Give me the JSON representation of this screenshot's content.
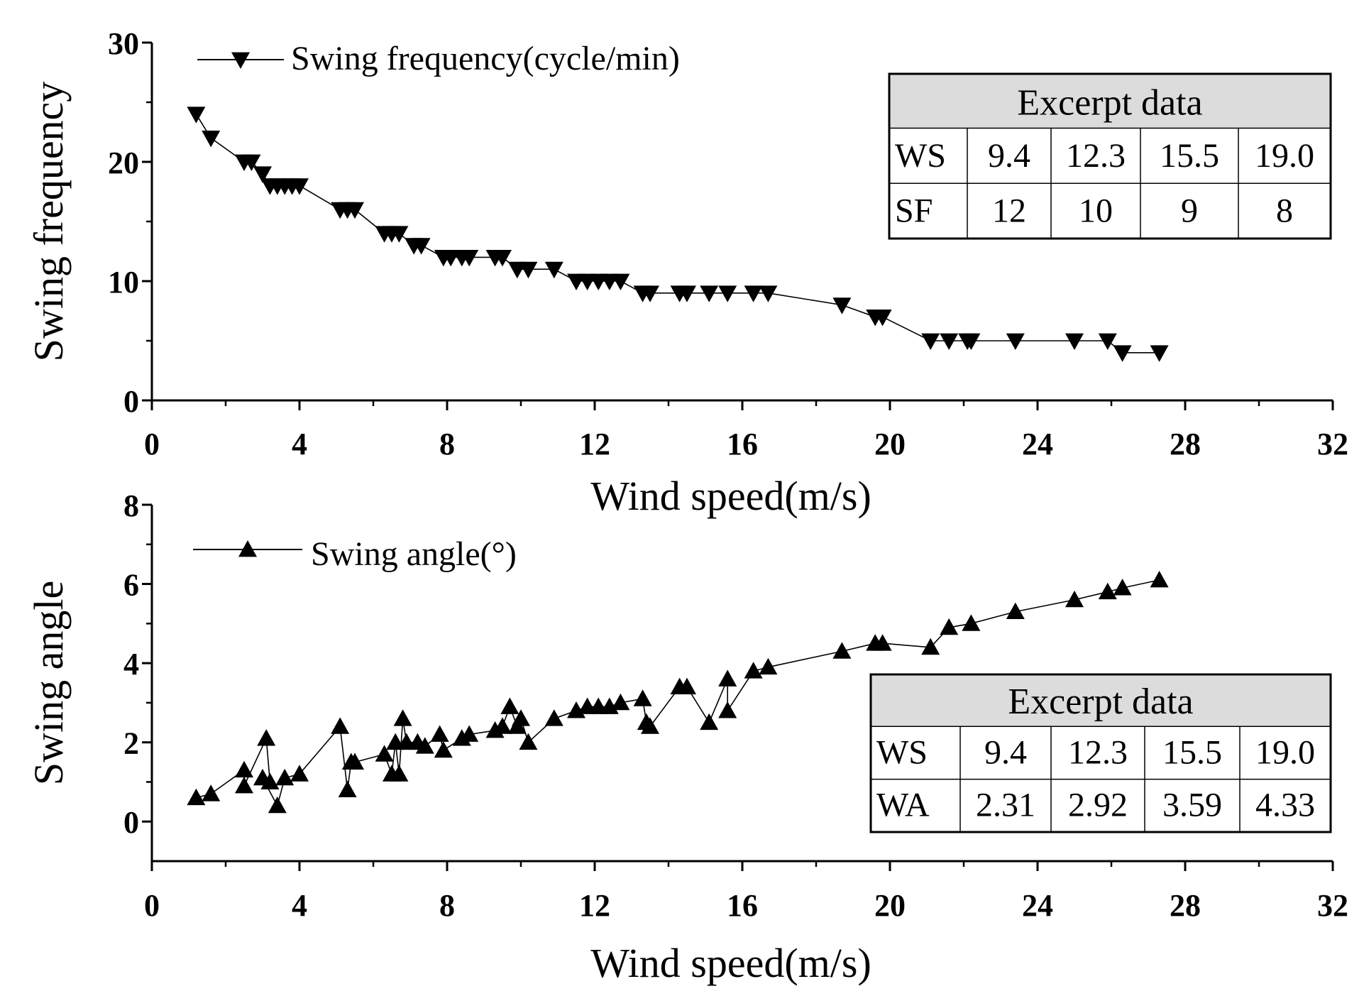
{
  "chart_data": [
    {
      "type": "line",
      "title": "",
      "xlabel": "Wind speed(m/s)",
      "ylabel": "Swing frequency",
      "xlim": [
        0,
        32
      ],
      "ylim": [
        0,
        30
      ],
      "xticks": [
        0,
        4,
        8,
        12,
        16,
        20,
        24,
        28,
        32
      ],
      "yticks": [
        0,
        10,
        20,
        30
      ],
      "grid": false,
      "legend_position": "top-left",
      "marker": "triangle-down",
      "series": [
        {
          "name": "Swing frequency(cycle/min)",
          "x": [
            1.2,
            1.6,
            2.5,
            2.7,
            3.0,
            3.2,
            3.4,
            3.6,
            3.8,
            4.0,
            5.1,
            5.3,
            5.5,
            6.3,
            6.5,
            6.7,
            7.1,
            7.3,
            7.9,
            8.1,
            8.4,
            8.6,
            9.3,
            9.5,
            9.9,
            10.2,
            10.9,
            11.5,
            11.8,
            12.1,
            12.4,
            12.7,
            13.3,
            13.5,
            14.3,
            14.5,
            15.1,
            15.6,
            16.3,
            16.7,
            18.7,
            19.6,
            19.8,
            21.1,
            21.6,
            22.1,
            22.2,
            23.4,
            25.0,
            25.9,
            26.3,
            27.3
          ],
          "y": [
            24,
            22,
            20,
            20,
            19,
            18,
            18,
            18,
            18,
            18,
            16,
            16,
            16,
            14,
            14,
            14,
            13,
            13,
            12,
            12,
            12,
            12,
            12,
            12,
            11,
            11,
            11,
            10,
            10,
            10,
            10,
            10,
            9,
            9,
            9,
            9,
            9,
            9,
            9,
            9,
            8,
            7,
            7,
            5,
            5,
            5,
            5,
            5,
            5,
            5,
            4,
            4
          ]
        }
      ],
      "table": {
        "title": "Excerpt data",
        "rows": [
          [
            "WS",
            "9.4",
            "12.3",
            "15.5",
            "19.0"
          ],
          [
            "SF",
            "12",
            "10",
            "9",
            "8"
          ]
        ]
      }
    },
    {
      "type": "line",
      "title": "",
      "xlabel": "Wind speed(m/s)",
      "ylabel": "Swing angle",
      "xlim": [
        0,
        32
      ],
      "ylim": [
        -1,
        8
      ],
      "xticks": [
        0,
        4,
        8,
        12,
        16,
        20,
        24,
        28,
        32
      ],
      "yticks": [
        0,
        2,
        4,
        6,
        8
      ],
      "grid": false,
      "legend_position": "top-left",
      "marker": "triangle-up",
      "series": [
        {
          "name": "Swing angle(°)",
          "x": [
            1.2,
            1.6,
            2.5,
            2.5,
            3.1,
            3.2,
            3.0,
            3.4,
            3.6,
            4.0,
            5.1,
            5.3,
            5.4,
            5.5,
            6.3,
            6.5,
            6.6,
            6.7,
            6.8,
            6.9,
            7.2,
            7.4,
            7.8,
            7.9,
            8.4,
            8.6,
            9.3,
            9.5,
            9.7,
            9.9,
            10.0,
            10.2,
            10.9,
            11.5,
            11.8,
            12.1,
            12.4,
            12.7,
            13.3,
            13.4,
            13.5,
            14.3,
            14.5,
            15.1,
            15.6,
            15.6,
            16.3,
            16.7,
            18.7,
            19.6,
            19.8,
            21.1,
            21.6,
            22.2,
            23.4,
            25.0,
            25.9,
            26.3,
            27.3
          ],
          "y": [
            0.6,
            0.7,
            1.3,
            0.9,
            2.1,
            1.0,
            1.1,
            0.4,
            1.1,
            1.2,
            2.4,
            0.8,
            1.5,
            1.5,
            1.7,
            1.2,
            2.0,
            1.2,
            2.6,
            2.0,
            2.0,
            1.9,
            2.2,
            1.8,
            2.1,
            2.2,
            2.3,
            2.4,
            2.9,
            2.4,
            2.6,
            2.0,
            2.6,
            2.8,
            2.9,
            2.9,
            2.9,
            3.0,
            3.1,
            2.5,
            2.4,
            3.4,
            3.4,
            2.5,
            3.6,
            2.8,
            3.8,
            3.9,
            4.3,
            4.5,
            4.5,
            4.4,
            4.9,
            5.0,
            5.3,
            5.6,
            5.8,
            5.9,
            6.1
          ]
        }
      ],
      "table": {
        "title": "Excerpt data",
        "rows": [
          [
            "WS",
            "9.4",
            "12.3",
            "15.5",
            "19.0"
          ],
          [
            "WA",
            "2.31",
            "2.92",
            "3.59",
            "4.33"
          ]
        ]
      }
    }
  ]
}
